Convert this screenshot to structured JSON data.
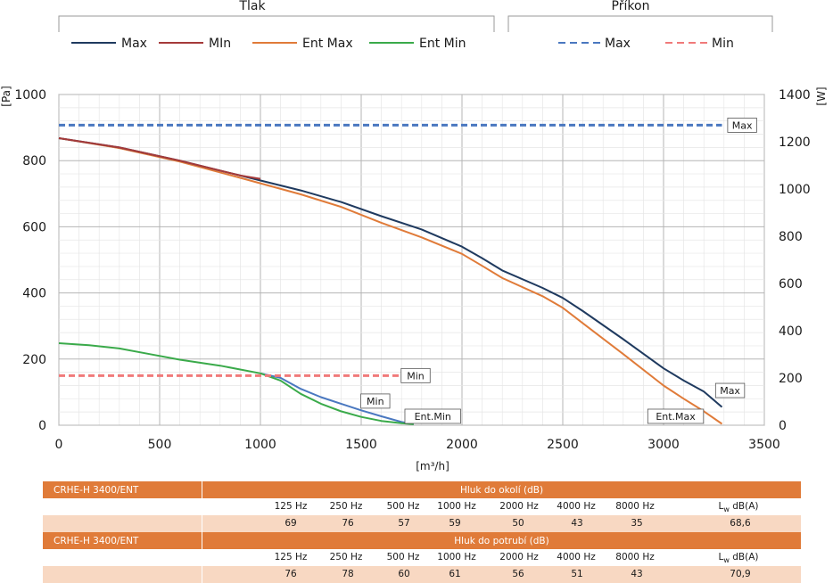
{
  "legend": {
    "pressure_title": "Tlak",
    "power_title": "Příkon",
    "pressure_items": [
      {
        "label": "Max",
        "color": "#1f3a5f",
        "style": "solid"
      },
      {
        "label": "MIn",
        "color": "#a53a3a",
        "style": "solid"
      },
      {
        "label": "Ent Max",
        "color": "#e07b39",
        "style": "solid"
      },
      {
        "label": "Ent Min",
        "color": "#3aaa4a",
        "style": "solid"
      }
    ],
    "power_items": [
      {
        "label": "Max",
        "color": "#4a78c0",
        "style": "dashed"
      },
      {
        "label": "Min",
        "color": "#f07a7a",
        "style": "dashed"
      }
    ]
  },
  "chart_data": {
    "type": "line",
    "xlabel": "[m³/h]",
    "ylabel_left": "[Pa]",
    "ylabel_right": "[W]",
    "xlim": [
      0,
      3500
    ],
    "ylim_left": [
      0,
      1000
    ],
    "ylim_right": [
      0,
      1400
    ],
    "xticks": [
      0,
      500,
      1000,
      1500,
      2000,
      2500,
      3000,
      3500
    ],
    "yticks_left": [
      0,
      200,
      400,
      600,
      800,
      1000
    ],
    "yticks_right": [
      0,
      200,
      400,
      600,
      800,
      1000,
      1200,
      1400
    ],
    "grid": true,
    "series": [
      {
        "name": "Max",
        "axis": "left",
        "color": "#1f3a5f",
        "dash": false,
        "x": [
          0,
          300,
          600,
          900,
          1200,
          1400,
          1600,
          1800,
          2000,
          2100,
          2200,
          2400,
          2500,
          2600,
          2800,
          3000,
          3100,
          3200,
          3290
        ],
        "y": [
          868,
          840,
          800,
          755,
          710,
          675,
          632,
          592,
          540,
          505,
          468,
          415,
          385,
          345,
          260,
          172,
          135,
          102,
          55
        ]
      },
      {
        "name": "MIn",
        "axis": "left",
        "color": "#a53a3a",
        "dash": false,
        "x": [
          0,
          300,
          600,
          900,
          1000
        ],
        "y": [
          868,
          840,
          800,
          755,
          745
        ]
      },
      {
        "name": "Ent Max",
        "axis": "left",
        "color": "#e07b39",
        "dash": false,
        "x": [
          0,
          300,
          600,
          900,
          1200,
          1400,
          1600,
          1800,
          2000,
          2100,
          2200,
          2400,
          2500,
          2600,
          2800,
          3000,
          3100,
          3200,
          3290
        ],
        "y": [
          868,
          838,
          797,
          748,
          698,
          660,
          612,
          568,
          518,
          482,
          445,
          390,
          355,
          308,
          215,
          120,
          80,
          42,
          4
        ]
      },
      {
        "name": "Ent Min",
        "axis": "left",
        "color": "#3aaa4a",
        "dash": false,
        "x": [
          0,
          150,
          300,
          450,
          600,
          800,
          1000,
          1100,
          1200,
          1300,
          1400,
          1500,
          1600,
          1700,
          1760
        ],
        "y": [
          248,
          242,
          232,
          215,
          198,
          180,
          157,
          135,
          95,
          65,
          42,
          25,
          13,
          6,
          3
        ]
      },
      {
        "name": "Min",
        "axis": "left",
        "color": "#4a78c0",
        "dash": false,
        "x": [
          1000,
          1100,
          1200,
          1300,
          1400,
          1500,
          1600,
          1700,
          1760
        ],
        "y": [
          157,
          143,
          110,
          85,
          65,
          45,
          27,
          10,
          3
        ]
      },
      {
        "name": "Max",
        "axis": "right",
        "color": "#4a78c0",
        "dash": true,
        "x": [
          0,
          3290
        ],
        "y": [
          1270,
          1270
        ]
      },
      {
        "name": "Min",
        "axis": "right",
        "color": "#f07a7a",
        "dash": true,
        "x": [
          0,
          1690
        ],
        "y": [
          210,
          210
        ]
      }
    ],
    "annotations": [
      {
        "text": "Max",
        "x": 3390,
        "y_right": 1270
      },
      {
        "text": "Min",
        "x": 1770,
        "y_right": 210
      },
      {
        "text": "Min",
        "x": 1570,
        "y": 73
      },
      {
        "text": "Ent.Min",
        "x": 1855,
        "y": 27
      },
      {
        "text": "Ent.Max",
        "x": 3060,
        "y": 27
      },
      {
        "text": "Max",
        "x": 3330,
        "y": 105
      }
    ]
  },
  "table1": {
    "model": "CRHE-H 3400/ENT",
    "title": "Hluk do okolí (dB)",
    "freqs": [
      "125 Hz",
      "250 Hz",
      "500 Hz",
      "1000 Hz",
      "2000 Hz",
      "4000 Hz",
      "8000 Hz"
    ],
    "lw_label": "L",
    "lw_sub": "w",
    "lw_unit": " dB(A)",
    "values": [
      "69",
      "76",
      "57",
      "59",
      "50",
      "43",
      "35"
    ],
    "lw_value": "68,6"
  },
  "table2": {
    "model": "CRHE-H 3400/ENT",
    "title": "Hluk do potrubí (dB)",
    "freqs": [
      "125 Hz",
      "250 Hz",
      "500 Hz",
      "1000 Hz",
      "2000 Hz",
      "4000 Hz",
      "8000 Hz"
    ],
    "lw_label": "L",
    "lw_sub": "w",
    "lw_unit": " dB(A)",
    "values": [
      "76",
      "78",
      "60",
      "61",
      "56",
      "51",
      "43"
    ],
    "lw_value": "70,9"
  }
}
